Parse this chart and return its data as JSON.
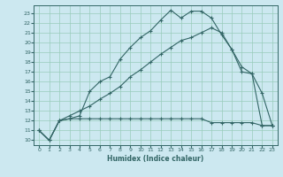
{
  "xlabel": "Humidex (Indice chaleur)",
  "bg_color": "#cce8f0",
  "grid_color": "#99ccbb",
  "line_color": "#336666",
  "xlim": [
    -0.5,
    23.5
  ],
  "ylim": [
    9.5,
    23.8
  ],
  "xticks": [
    0,
    1,
    2,
    3,
    4,
    5,
    6,
    7,
    8,
    9,
    10,
    11,
    12,
    13,
    14,
    15,
    16,
    17,
    18,
    19,
    20,
    21,
    22,
    23
  ],
  "yticks": [
    10,
    11,
    12,
    13,
    14,
    15,
    16,
    17,
    18,
    19,
    20,
    21,
    22,
    23
  ],
  "s1_x": [
    0,
    1,
    2,
    3,
    4,
    5,
    6,
    7,
    8,
    9,
    10,
    11,
    12,
    13,
    14,
    15,
    16,
    17,
    18,
    19,
    20,
    21,
    22,
    23
  ],
  "s1_y": [
    11.0,
    10.0,
    12.0,
    12.2,
    12.5,
    15.0,
    16.0,
    16.5,
    18.3,
    19.5,
    20.5,
    21.2,
    22.3,
    23.3,
    22.5,
    23.2,
    23.2,
    22.5,
    20.8,
    19.3,
    17.0,
    16.8,
    11.5,
    11.5
  ],
  "s2_x": [
    0,
    1,
    2,
    3,
    4,
    5,
    6,
    7,
    8,
    9,
    10,
    11,
    12,
    13,
    14,
    15,
    16,
    17,
    18,
    19,
    20,
    21,
    22,
    23
  ],
  "s2_y": [
    11.0,
    10.0,
    12.0,
    12.5,
    13.0,
    13.5,
    14.2,
    14.8,
    15.5,
    16.5,
    17.2,
    18.0,
    18.8,
    19.5,
    20.2,
    20.5,
    21.0,
    21.5,
    21.0,
    19.3,
    17.5,
    16.8,
    14.8,
    11.5
  ],
  "s3_x": [
    0,
    1,
    2,
    3,
    4,
    5,
    6,
    7,
    8,
    9,
    10,
    11,
    12,
    13,
    14,
    15,
    16,
    17,
    18,
    19,
    20,
    21,
    22,
    23
  ],
  "s3_y": [
    11.0,
    10.0,
    12.0,
    12.2,
    12.2,
    12.2,
    12.2,
    12.2,
    12.2,
    12.2,
    12.2,
    12.2,
    12.2,
    12.2,
    12.2,
    12.2,
    12.2,
    11.8,
    11.8,
    11.8,
    11.8,
    11.8,
    11.5,
    11.5
  ]
}
